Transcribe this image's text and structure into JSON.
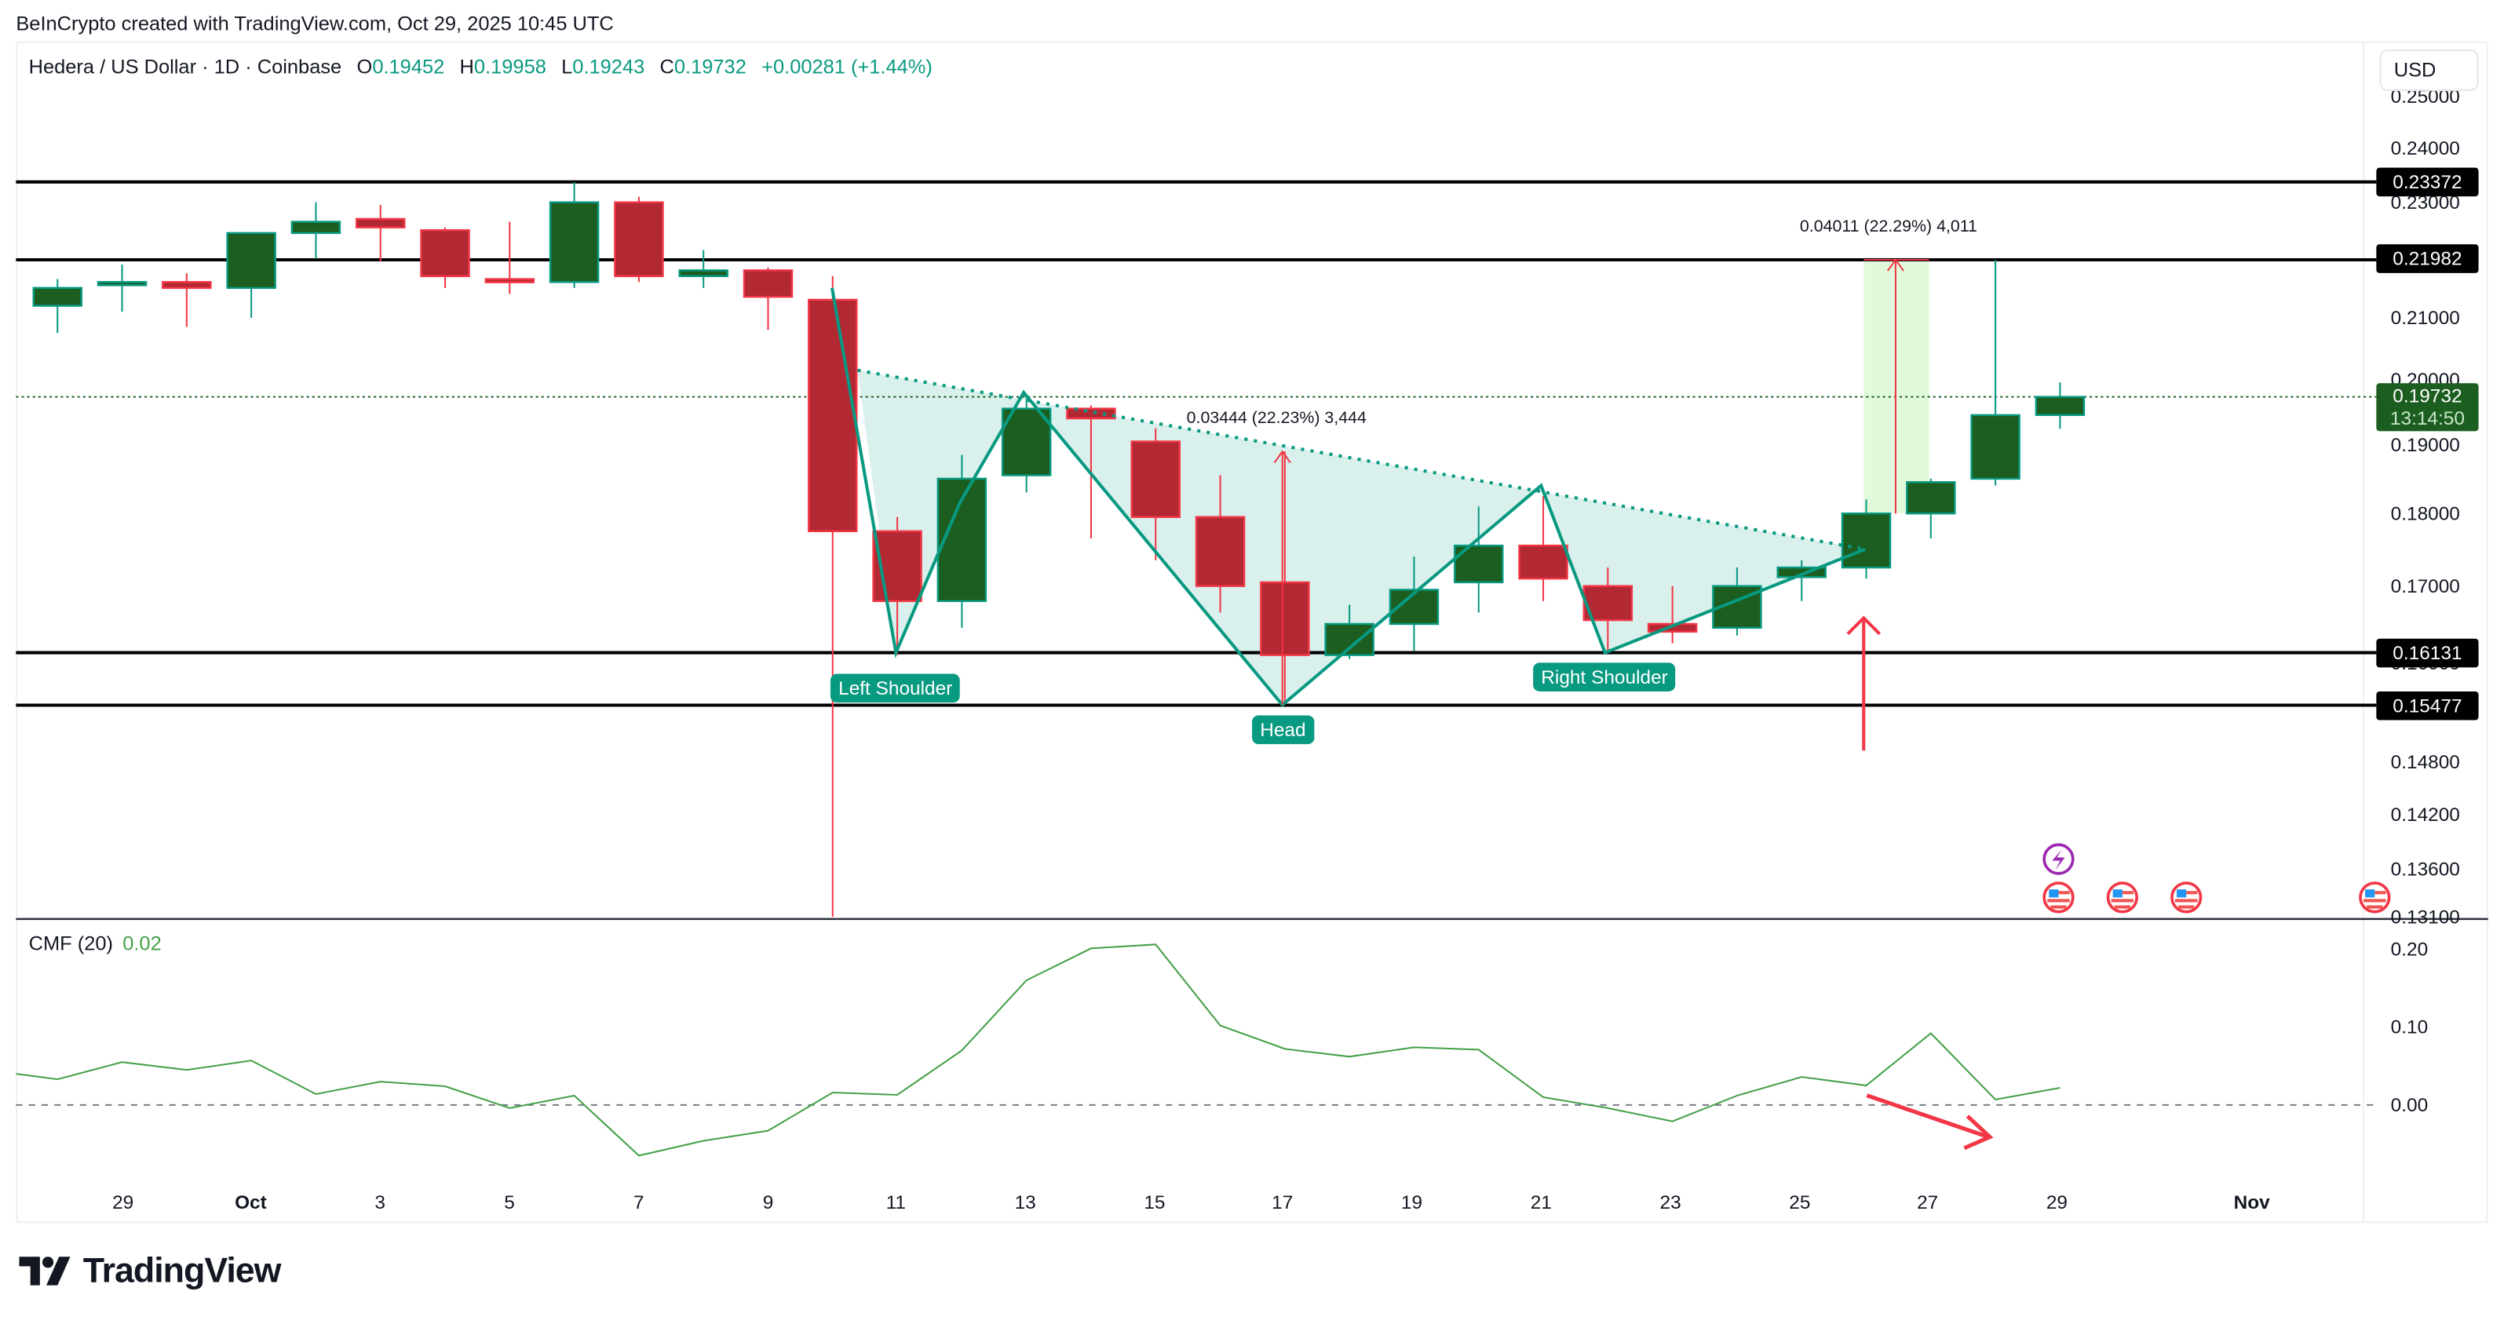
{
  "header": {
    "credit": "BeInCrypto created with TradingView.com, Oct 29, 2025 10:45 UTC"
  },
  "legend": {
    "symbol": "Hedera / US Dollar · 1D · Coinbase",
    "o_label": "O",
    "o": "0.19452",
    "h_label": "H",
    "h": "0.19958",
    "l_label": "L",
    "l": "0.19243",
    "c_label": "C",
    "c": "0.19732",
    "change": "+0.00281 (+1.44%)"
  },
  "currency_button": "USD",
  "price_axis": {
    "ticks": [
      "0.25000",
      "0.24000",
      "0.23000",
      "0.21000",
      "0.20000",
      "0.19000",
      "0.18000",
      "0.17000",
      "0.16000",
      "0.14800",
      "0.14200",
      "0.13600",
      "0.13100"
    ],
    "levels": [
      {
        "label": "0.23372",
        "price": 0.23372
      },
      {
        "label": "0.21982",
        "price": 0.21982
      },
      {
        "label": "0.16131",
        "price": 0.16131
      },
      {
        "label": "0.15477",
        "price": 0.15477
      }
    ],
    "current": {
      "price_label": "0.19732",
      "countdown": "13:14:50",
      "price": 0.19732
    }
  },
  "annotations": {
    "left_shoulder": "Left Shoulder",
    "head": "Head",
    "right_shoulder": "Right Shoulder",
    "measure_1": "0.03444 (22.23%) 3,444",
    "measure_2": "0.04011 (22.29%) 4,011"
  },
  "cmf": {
    "label": "CMF (20)",
    "value": "0.02",
    "ticks": [
      "0.20",
      "0.10",
      "0.00"
    ]
  },
  "time_axis": {
    "ticks": [
      "29",
      "Oct",
      "3",
      "5",
      "7",
      "9",
      "11",
      "13",
      "15",
      "17",
      "19",
      "21",
      "23",
      "25",
      "27",
      "29",
      "Nov"
    ]
  },
  "logo": "TradingView",
  "colors": {
    "up_body": "#1b5e20",
    "up_border": "#089981",
    "down_body": "#b22833",
    "down_border": "#f23645",
    "pattern": "#089981",
    "pattern_fill": "#d9f0ec",
    "cmf_line": "#43a047",
    "arrow": "#f23645",
    "target_fill": "#e2fadc"
  },
  "chart_data": [
    {
      "type": "candlestick",
      "title": "Hedera / US Dollar · 1D · Coinbase",
      "ylabel": "USD",
      "yscale": "log",
      "ylim": [
        0.131,
        0.252
      ],
      "x": [
        "Sep 28",
        "Sep 29",
        "Sep 30",
        "Oct 1",
        "Oct 2",
        "Oct 3",
        "Oct 4",
        "Oct 5",
        "Oct 6",
        "Oct 7",
        "Oct 8",
        "Oct 9",
        "Oct 10",
        "Oct 11",
        "Oct 12",
        "Oct 13",
        "Oct 14",
        "Oct 15",
        "Oct 16",
        "Oct 17",
        "Oct 18",
        "Oct 19",
        "Oct 20",
        "Oct 21",
        "Oct 22",
        "Oct 23",
        "Oct 24",
        "Oct 25",
        "Oct 26",
        "Oct 27",
        "Oct 28",
        "Oct 29"
      ],
      "ohlc": [
        [
          0.212,
          0.215,
          0.2165,
          0.2075
        ],
        [
          0.2155,
          0.216,
          0.219,
          0.211
        ],
        [
          0.216,
          0.215,
          0.2175,
          0.2085
        ],
        [
          0.215,
          0.2245,
          0.2245,
          0.21
        ],
        [
          0.2245,
          0.2265,
          0.23,
          0.22
        ],
        [
          0.227,
          0.2255,
          0.2295,
          0.2195
        ],
        [
          0.225,
          0.217,
          0.2255,
          0.215
        ],
        [
          0.2165,
          0.216,
          0.2265,
          0.214
        ],
        [
          0.216,
          0.23,
          0.2337,
          0.215
        ],
        [
          0.23,
          0.217,
          0.231,
          0.216
        ],
        [
          0.217,
          0.218,
          0.2215,
          0.215
        ],
        [
          0.218,
          0.2135,
          0.2185,
          0.208
        ],
        [
          0.213,
          0.1775,
          0.217,
          0.131
        ],
        [
          0.1775,
          0.168,
          0.1795,
          0.161
        ],
        [
          0.168,
          0.185,
          0.1885,
          0.1645
        ],
        [
          0.1855,
          0.1955,
          0.197,
          0.183
        ],
        [
          0.1955,
          0.194,
          0.196,
          0.1765
        ],
        [
          0.1905,
          0.1795,
          0.1925,
          0.1735
        ],
        [
          0.1795,
          0.17,
          0.1855,
          0.1665
        ],
        [
          0.1705,
          0.161,
          0.189,
          0.1548
        ],
        [
          0.161,
          0.165,
          0.1675,
          0.1605
        ],
        [
          0.165,
          0.1695,
          0.174,
          0.1615
        ],
        [
          0.1705,
          0.1755,
          0.181,
          0.1665
        ],
        [
          0.1755,
          0.171,
          0.1825,
          0.168
        ],
        [
          0.17,
          0.1655,
          0.1725,
          0.1613
        ],
        [
          0.165,
          0.164,
          0.17,
          0.1625
        ],
        [
          0.1645,
          0.17,
          0.1725,
          0.1635
        ],
        [
          0.1712,
          0.1725,
          0.1735,
          0.168
        ],
        [
          0.1725,
          0.18,
          0.182,
          0.171
        ],
        [
          0.18,
          0.1845,
          0.185,
          0.1765
        ],
        [
          0.185,
          0.1945,
          0.2198,
          0.184
        ],
        [
          0.19452,
          0.19732,
          0.19958,
          0.19243
        ]
      ],
      "horizontal_levels": [
        0.23372,
        0.21982,
        0.16131,
        0.15477
      ],
      "pattern": "inverse head and shoulders",
      "neckline": "descending dotted line from ~0.2015 (Oct 10) to ~0.1750 (Oct 26)",
      "annotations": [
        "Left Shoulder (Oct 11, ~0.161)",
        "Head (Oct 17, ~0.1548)",
        "Right Shoulder (Oct 22, ~0.161)",
        "0.03444 (22.23%) 3,444",
        "0.04011 (22.29%) 4,011"
      ]
    },
    {
      "type": "line",
      "title": "CMF (20)",
      "ylim": [
        -0.09,
        0.22
      ],
      "x": [
        "Sep 27",
        "Sep 28",
        "Sep 29",
        "Sep 30",
        "Oct 1",
        "Oct 2",
        "Oct 3",
        "Oct 4",
        "Oct 5",
        "Oct 6",
        "Oct 7",
        "Oct 8",
        "Oct 9",
        "Oct 10",
        "Oct 11",
        "Oct 12",
        "Oct 13",
        "Oct 14",
        "Oct 15",
        "Oct 16",
        "Oct 17",
        "Oct 18",
        "Oct 19",
        "Oct 20",
        "Oct 21",
        "Oct 22",
        "Oct 23",
        "Oct 24",
        "Oct 25",
        "Oct 26",
        "Oct 27",
        "Oct 28",
        "Oct 29"
      ],
      "values": [
        0.04,
        0.033,
        0.055,
        0.045,
        0.057,
        0.014,
        0.03,
        0.024,
        -0.004,
        0.012,
        -0.065,
        -0.046,
        -0.033,
        0.016,
        0.013,
        0.07,
        0.16,
        0.201,
        0.206,
        0.102,
        0.072,
        0.062,
        0.074,
        0.071,
        0.01,
        -0.004,
        -0.021,
        0.012,
        0.036,
        0.025,
        0.092,
        0.007,
        0.022
      ],
      "zero_line": true,
      "ticks": [
        0.2,
        0.1,
        0.0
      ]
    }
  ]
}
